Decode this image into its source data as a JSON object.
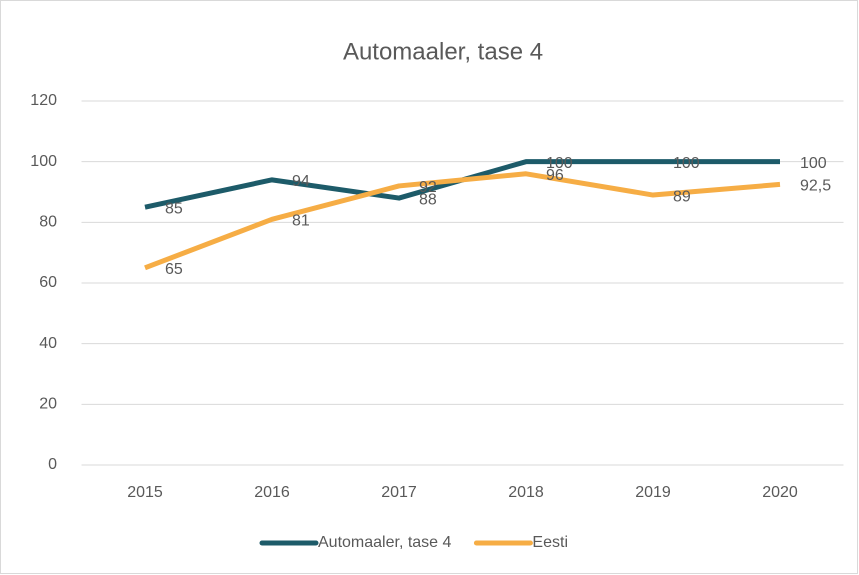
{
  "chart_data": {
    "type": "line",
    "title": "Automaaler, tase 4",
    "categories": [
      "2015",
      "2016",
      "2017",
      "2018",
      "2019",
      "2020"
    ],
    "series": [
      {
        "name": "Automaaler, tase 4",
        "color": "#1d5b69",
        "values": [
          85,
          94,
          88,
          100,
          100,
          100
        ]
      },
      {
        "name": "Eesti",
        "color": "#f6ad45",
        "values": [
          65,
          81,
          92,
          96,
          89,
          92.5
        ],
        "value_labels": [
          "65",
          "81",
          "92",
          "96",
          "89",
          "92,5"
        ]
      }
    ],
    "ylim": [
      0,
      120
    ],
    "yticks": [
      0,
      20,
      40,
      60,
      80,
      100,
      120
    ],
    "grid": true,
    "legend": "bottom"
  }
}
